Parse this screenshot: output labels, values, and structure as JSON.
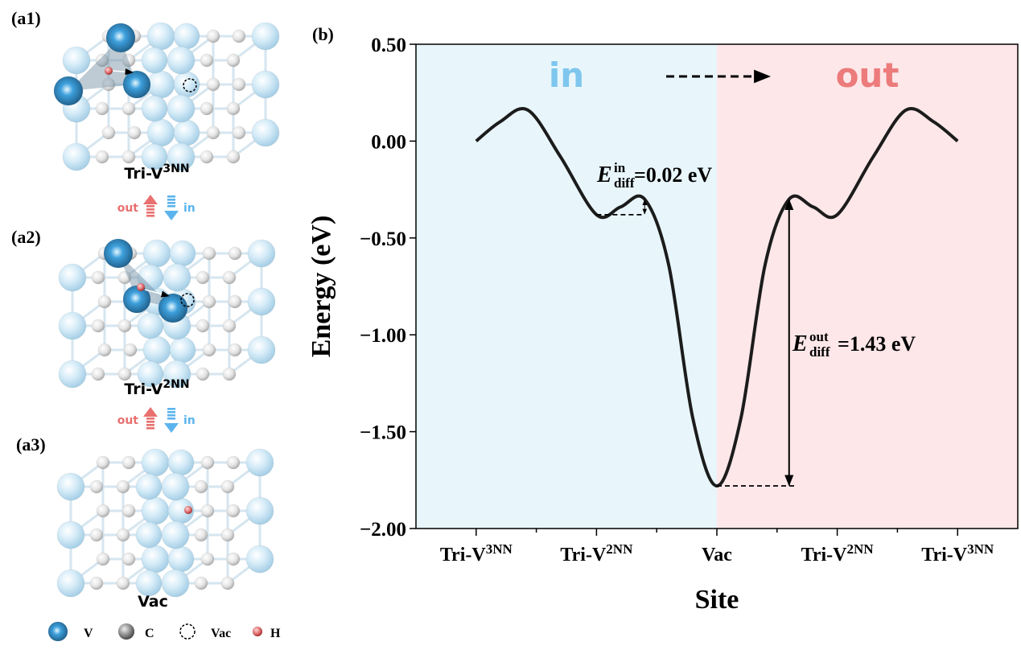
{
  "panels": {
    "a1": {
      "label": "(a1)",
      "name": "Tri-V",
      "name_sup": "3NN"
    },
    "a2": {
      "label": "(a2)",
      "name": "Tri-V",
      "name_sup": "2NN"
    },
    "a3": {
      "label": "(a3)",
      "name": "Vac"
    },
    "transitions": [
      {
        "out": "out",
        "in": "in"
      },
      {
        "out": "out",
        "in": "in"
      }
    ],
    "legend": [
      "V",
      "C",
      "Vac",
      "H"
    ]
  },
  "chart_data": {
    "type": "line",
    "panel_label": "(b)",
    "xlabel": "Site",
    "ylabel": "Energy (eV)",
    "xlim": [
      -0.5,
      4.5
    ],
    "xticks": [
      {
        "value": 0,
        "label": "Tri-V",
        "sup": "3NN"
      },
      {
        "value": 1,
        "label": "Tri-V",
        "sup": "2NN"
      },
      {
        "value": 2,
        "label": "Vac"
      },
      {
        "value": 3,
        "label": "Tri-V",
        "sup": "2NN"
      },
      {
        "value": 4,
        "label": "Tri-V",
        "sup": "3NN"
      }
    ],
    "xminor": [
      0.5,
      1.5,
      2.5,
      3.5
    ],
    "ylim": [
      -2,
      0.5
    ],
    "yticks": [
      {
        "value": 0.5,
        "label": "0.50"
      },
      {
        "value": 0,
        "label": "0.00"
      },
      {
        "value": -0.5,
        "label": "−0.50"
      },
      {
        "value": -1,
        "label": "−1.00"
      },
      {
        "value": -1.5,
        "label": "−1.50"
      },
      {
        "value": -2,
        "label": "−2.00"
      }
    ],
    "regions": [
      {
        "name": "in",
        "xlim": [
          -0.5,
          2
        ],
        "color": "#e8f6fc",
        "text_color": "#7ec6ee"
      },
      {
        "name": "out",
        "xlim": [
          2,
          4.5
        ],
        "color": "#fde7e9",
        "text_color": "#ec7b7b"
      }
    ],
    "x": [
      0,
      0.2,
      0.43,
      0.7,
      1.0,
      1.2,
      1.4,
      1.6,
      1.8,
      2.0,
      2.2,
      2.4,
      2.6,
      2.8,
      3.0,
      3.3,
      3.57,
      3.8,
      4.0
    ],
    "values": [
      0,
      0.1,
      0.16,
      -0.08,
      -0.38,
      -0.34,
      -0.3,
      -0.64,
      -1.43,
      -1.78,
      -1.43,
      -0.64,
      -0.3,
      -0.34,
      -0.38,
      -0.08,
      0.16,
      0.1,
      0
    ],
    "color": "#1c1c1c",
    "annotations": [
      {
        "symbol": "E",
        "sup": "in",
        "sub": "diff",
        "text": "=0.02 eV"
      },
      {
        "symbol": "E",
        "sup": "out",
        "sub": "diff",
        "text": "=1.43 eV"
      }
    ]
  }
}
